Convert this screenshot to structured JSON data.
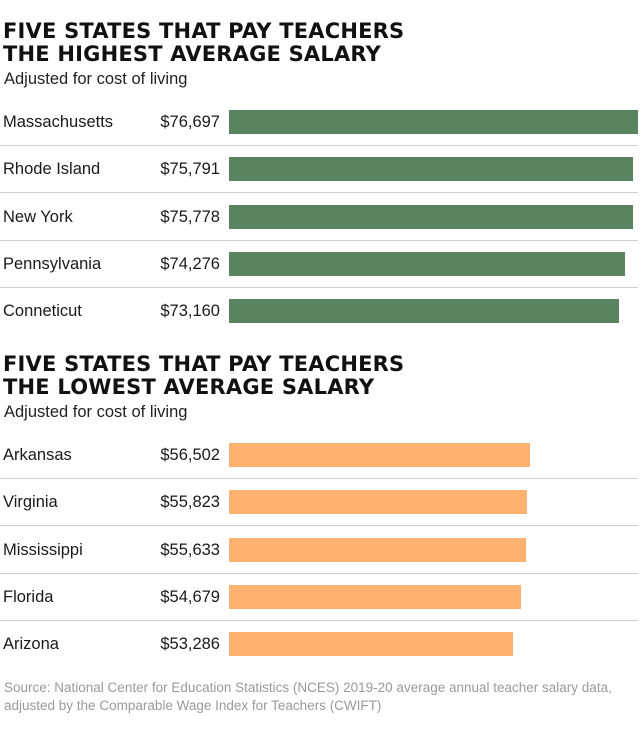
{
  "chart_data": [
    {
      "type": "bar",
      "orientation": "horizontal",
      "title": "FIVE STATES THAT PAY TEACHERS\nTHE HIGHEST AVERAGE SALARY",
      "subtitle": "Adjusted for cost of living",
      "categories": [
        "Massachusetts",
        "Rhode Island",
        "New York",
        "Pennsylvania",
        "Conneticut"
      ],
      "values": [
        76697,
        75791,
        75778,
        74276,
        73160
      ],
      "value_labels": [
        "$76,697",
        "$75,791",
        "$75,778",
        "$74,276",
        "$73,160"
      ],
      "bar_color": "#5a8360",
      "grid": false
    },
    {
      "type": "bar",
      "orientation": "horizontal",
      "title": "FIVE STATES THAT PAY TEACHERS\nTHE LOWEST AVERAGE SALARY",
      "subtitle": "Adjusted for cost of living",
      "categories": [
        "Arkansas",
        "Virginia",
        "Mississippi",
        "Florida",
        "Arizona"
      ],
      "values": [
        56502,
        55823,
        55633,
        54679,
        53286
      ],
      "value_labels": [
        "$56,502",
        "$55,823",
        "$55,633",
        "$54,679",
        "$53,286"
      ],
      "bar_color": "#fdb26f",
      "grid": false
    }
  ],
  "source": "Source: National Center for Education Statistics (NCES) 2019-20 average annual teacher salary data, adjusted by the Comparable Wage Index for Teachers (CWIFT)"
}
